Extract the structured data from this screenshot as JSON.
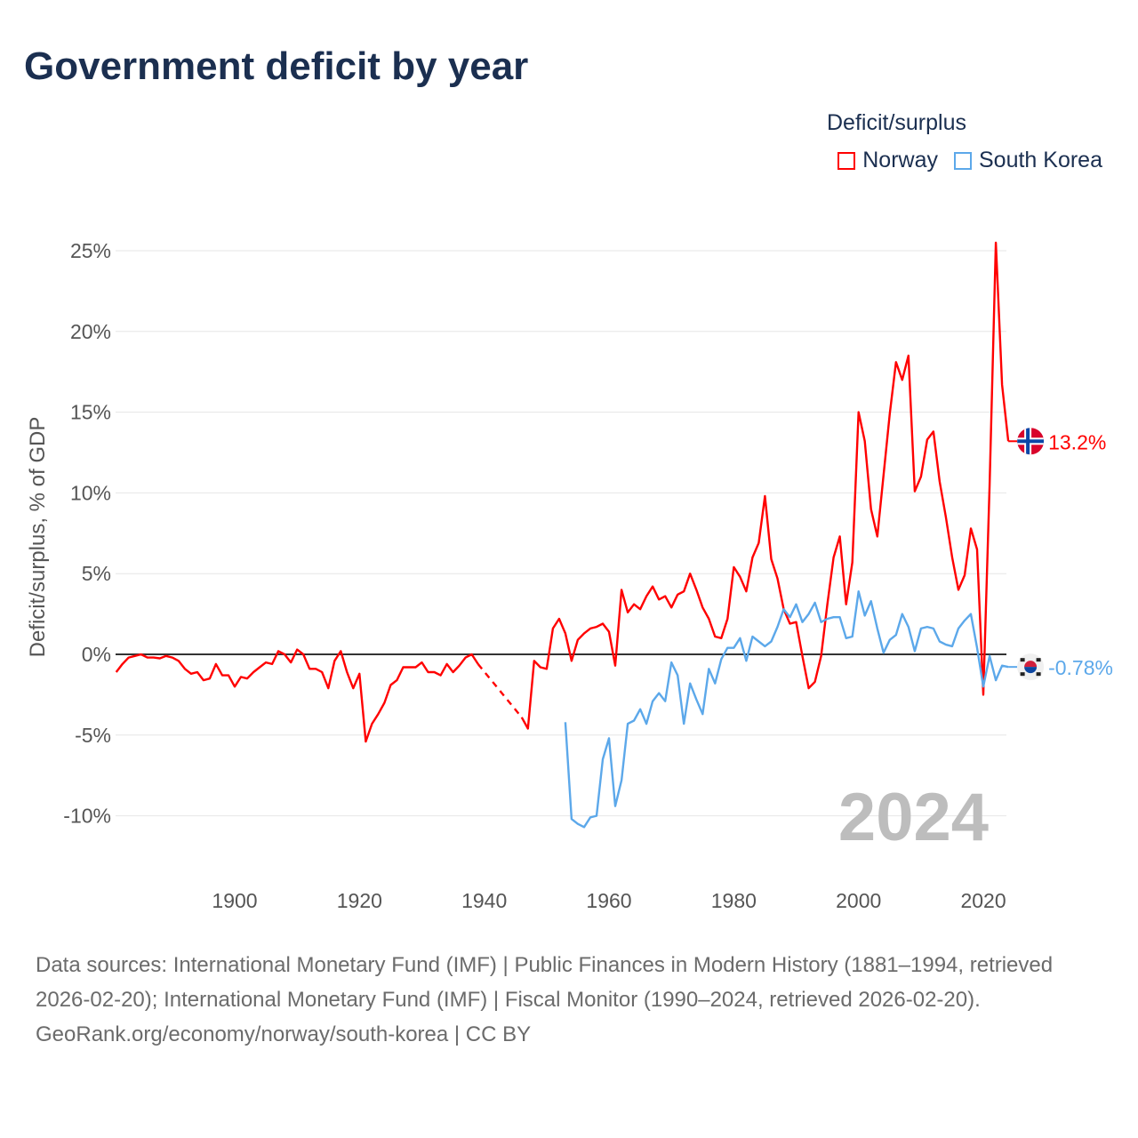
{
  "title": "Government deficit by year",
  "legend": {
    "title": "Deficit/surplus",
    "items": [
      {
        "name": "Norway",
        "color": "#ff0000"
      },
      {
        "name": "South Korea",
        "color": "#5ca8ea"
      }
    ]
  },
  "chart_data": {
    "type": "line",
    "title": "Government deficit by year",
    "ylabel": "Deficit/surplus, % of GDP",
    "xlabel": "",
    "ylim": [
      -12,
      25.5
    ],
    "xlim": [
      1881,
      2024
    ],
    "y_ticks": [
      25,
      20,
      15,
      10,
      5,
      0,
      -5,
      -10
    ],
    "y_tick_labels": [
      "25%",
      "20%",
      "15%",
      "10%",
      "5%",
      "0%",
      "-5%",
      "-10%"
    ],
    "x_ticks": [
      1900,
      1920,
      1940,
      1960,
      1980,
      2000,
      2020
    ],
    "x_tick_labels": [
      "1900",
      "1920",
      "1940",
      "1960",
      "1980",
      "2000",
      "2020"
    ],
    "grid": true,
    "year_watermark": "2024",
    "series": [
      {
        "name": "Norway",
        "color": "#ff0000",
        "start_year": 1881,
        "end_label": "13.2%",
        "flag": "norway-flag",
        "values": [
          -1.1,
          -0.6,
          -0.2,
          -0.1,
          0,
          -0.2,
          -0.2,
          -0.25,
          -0.1,
          -0.2,
          -0.4,
          -0.9,
          -1.2,
          -1.1,
          -1.6,
          -1.5,
          -0.6,
          -1.3,
          -1.3,
          -2.0,
          -1.4,
          -1.5,
          -1.1,
          -0.8,
          -0.5,
          -0.6,
          0.2,
          0,
          -0.5,
          0.3,
          0,
          -0.9,
          -0.9,
          -1.1,
          -2.1,
          -0.4,
          0.2,
          -1.1,
          -2.1,
          -1.2,
          -5.4,
          -4.3,
          -3.7,
          -3.0,
          -1.9,
          -1.6,
          -0.8,
          -0.8,
          -0.8,
          -0.5,
          -1.1,
          -1.1,
          -1.3,
          -0.6,
          -1.1,
          -0.7,
          -0.2,
          0,
          -0.6,
          null,
          null,
          null,
          null,
          null,
          null,
          -3.9,
          -4.6,
          -0.4,
          -0.8,
          -0.9,
          1.6,
          2.2,
          1.3,
          -0.4,
          0.9,
          1.3,
          1.6,
          1.7,
          1.9,
          1.4,
          -0.7,
          4.0,
          2.6,
          3.1,
          2.8,
          3.6,
          4.2,
          3.4,
          3.6,
          2.9,
          3.7,
          3.9,
          5.0,
          4.0,
          2.9,
          2.2,
          1.1,
          1.0,
          2.2,
          5.4,
          4.8,
          3.9,
          6.0,
          6.9,
          9.8,
          5.9,
          4.7,
          2.8,
          1.9,
          2.0,
          -0.1,
          -2.1,
          -1.7,
          -0.1,
          3.1,
          6.0,
          7.3,
          3.1,
          5.7,
          15.0,
          13.2,
          9.0,
          7.3,
          11.1,
          14.9,
          18.1,
          17.0,
          18.5,
          10.1,
          11.0,
          13.3,
          13.8,
          10.7,
          8.5,
          6.0,
          4.0,
          4.9,
          7.8,
          6.5,
          -2.5,
          10.5,
          25.5,
          16.7,
          13.2
        ]
      },
      {
        "name": "South Korea",
        "color": "#5ca8ea",
        "start_year": 1953,
        "end_label": "-0.78%",
        "flag": "south-korea-flag",
        "values": [
          -4.2,
          -10.2,
          -10.5,
          -10.7,
          -10.1,
          -10.0,
          -6.5,
          -5.2,
          -9.4,
          -7.8,
          -4.3,
          -4.1,
          -3.4,
          -4.3,
          -2.9,
          -2.4,
          -2.9,
          -0.5,
          -1.3,
          -4.3,
          -1.8,
          -2.8,
          -3.7,
          -0.9,
          -1.8,
          -0.3,
          0.4,
          0.4,
          1.0,
          -0.4,
          1.1,
          0.8,
          0.5,
          0.8,
          1.7,
          2.8,
          2.3,
          3.1,
          2.0,
          2.5,
          3.2,
          2.0,
          2.2,
          2.3,
          2.3,
          1.0,
          1.1,
          3.9,
          2.4,
          3.3,
          1.6,
          0.1,
          0.9,
          1.2,
          2.5,
          1.7,
          0.2,
          1.6,
          1.7,
          1.6,
          0.8,
          0.6,
          0.5,
          1.6,
          2.1,
          2.5,
          0.4,
          -2.0,
          -0.1,
          -1.6,
          -0.7,
          -0.78
        ]
      }
    ]
  },
  "footer": {
    "sources": "Data sources: International Monetary Fund (IMF) | Public Finances in Modern History (1881–1994, retrieved 2026-02-20); International Monetary Fund (IMF) | Fiscal Monitor (1990–2024, retrieved 2026-02-20).",
    "credit": "GeoRank.org/economy/norway/south-korea | CC BY"
  }
}
